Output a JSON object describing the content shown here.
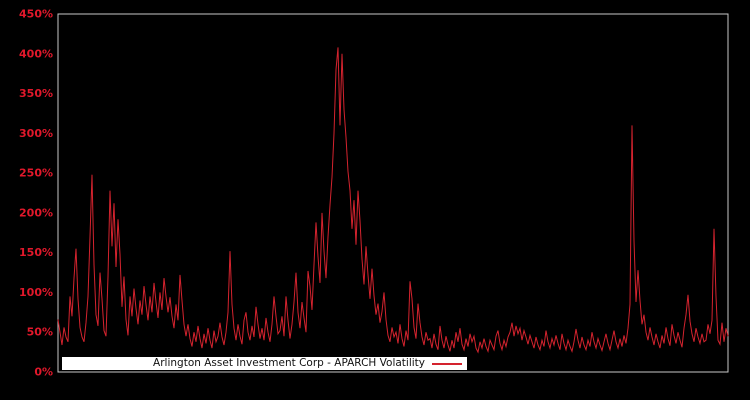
{
  "figure": {
    "background": "#000000",
    "border_color": "#c9c9c9",
    "line_color": "#d4232e",
    "label_color": "#e1182b",
    "legend": {
      "label": "Arlington Asset Investment Corp - APARCH Volatility",
      "background": "#ffffff",
      "text_color": "#111111"
    }
  },
  "chart_data": {
    "type": "line",
    "title": "",
    "xlabel": "",
    "ylabel": "",
    "ylim": [
      0,
      450
    ],
    "y_unit": "%",
    "y_ticks": [
      "0%",
      "50%",
      "100%",
      "150%",
      "200%",
      "250%",
      "300%",
      "350%",
      "400%",
      "450%"
    ],
    "x_ticks": [],
    "grid": false,
    "legend_position": "bottom-center",
    "series": [
      {
        "name": "Arlington Asset Investment Corp - APARCH Volatility",
        "unit": "percent",
        "values": [
          66,
          50,
          34,
          56,
          44,
          38,
          95,
          70,
          118,
          155,
          92,
          56,
          44,
          38,
          62,
          95,
          170,
          248,
          135,
          72,
          58,
          125,
          92,
          52,
          45,
          120,
          228,
          158,
          212,
          132,
          192,
          148,
          82,
          120,
          66,
          46,
          95,
          70,
          105,
          80,
          60,
          90,
          72,
          108,
          85,
          65,
          95,
          75,
          112,
          88,
          68,
          100,
          78,
          118,
          95,
          75,
          94,
          70,
          55,
          85,
          65,
          122,
          90,
          60,
          45,
          60,
          42,
          32,
          50,
          38,
          58,
          42,
          30,
          48,
          36,
          55,
          40,
          30,
          52,
          38,
          45,
          62,
          44,
          34,
          50,
          75,
          152,
          85,
          55,
          40,
          60,
          45,
          35,
          65,
          75,
          50,
          40,
          58,
          44,
          82,
          60,
          42,
          55,
          40,
          68,
          50,
          38,
          60,
          95,
          70,
          48,
          52,
          70,
          45,
          95,
          65,
          42,
          60,
          88,
          125,
          75,
          55,
          88,
          68,
          50,
          127,
          108,
          78,
          135,
          188,
          145,
          112,
          200,
          152,
          118,
          170,
          210,
          245,
          300,
          380,
          408,
          310,
          400,
          330,
          295,
          252,
          228,
          180,
          216,
          160,
          228,
          190,
          142,
          110,
          158,
          122,
          92,
          130,
          96,
          72,
          86,
          62,
          76,
          100,
          66,
          46,
          38,
          56,
          44,
          50,
          36,
          60,
          42,
          32,
          52,
          40,
          114,
          92,
          56,
          42,
          86,
          62,
          44,
          34,
          50,
          40,
          42,
          30,
          48,
          35,
          28,
          58,
          40,
          30,
          45,
          34,
          26,
          40,
          30,
          50,
          38,
          55,
          35,
          28,
          42,
          32,
          48,
          38,
          45,
          30,
          25,
          38,
          30,
          42,
          32,
          26,
          40,
          34,
          28,
          45,
          52,
          36,
          28,
          40,
          32,
          44,
          50,
          62,
          45,
          58,
          48,
          55,
          40,
          52,
          44,
          35,
          46,
          38,
          30,
          44,
          34,
          28,
          40,
          32,
          52,
          38,
          30,
          42,
          34,
          46,
          36,
          28,
          48,
          36,
          28,
          40,
          32,
          26,
          38,
          54,
          40,
          30,
          44,
          34,
          28,
          40,
          32,
          50,
          38,
          30,
          42,
          34,
          27,
          38,
          48,
          36,
          28,
          40,
          52,
          38,
          30,
          42,
          32,
          46,
          36,
          55,
          85,
          310,
          165,
          88,
          128,
          90,
          60,
          72,
          50,
          40,
          56,
          44,
          34,
          48,
          38,
          30,
          46,
          36,
          56,
          42,
          33,
          60,
          46,
          36,
          50,
          40,
          31,
          55,
          72,
          97,
          64,
          48,
          38,
          55,
          44,
          36,
          48,
          38,
          40,
          60,
          48,
          65,
          180,
          95,
          40,
          35,
          62,
          38,
          55,
          45
        ]
      }
    ]
  }
}
